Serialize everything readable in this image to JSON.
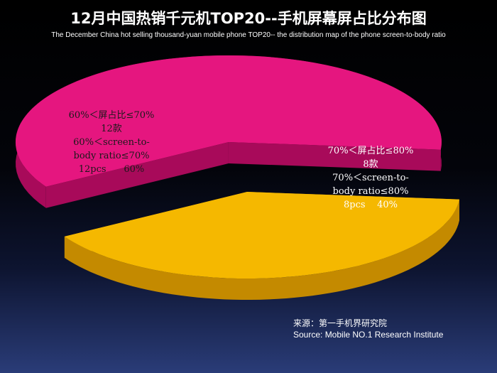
{
  "chart_data": {
    "type": "pie",
    "title": "12月中国热销千元机TOP20--手机屏幕屏占比分布图",
    "subtitle": "The December China hot selling thousand-yuan mobile phone TOP20-- the distribution map of the phone screen-to-body ratio",
    "slices": [
      {
        "label_lines": [
          "70%＜屏占比≤80%",
          "8款",
          "70%＜screen-to-",
          "body ratio≤80%",
          "8pcs    40%"
        ],
        "count": 8,
        "percent": 40,
        "color": "#f5b800",
        "side_color": "#c48a00"
      },
      {
        "label_lines": [
          "60%＜屏占比≤70%",
          "12款",
          "60%＜screen-to-",
          "body ratio≤70%",
          "12pcs      60%"
        ],
        "count": 12,
        "percent": 60,
        "color": "#e5167f",
        "side_color": "#a80a5a"
      }
    ],
    "style": "3d-exploded"
  },
  "source": {
    "line1": "来源：第一手机界研究院",
    "line2": "Source: Mobile NO.1 Research Institute"
  }
}
